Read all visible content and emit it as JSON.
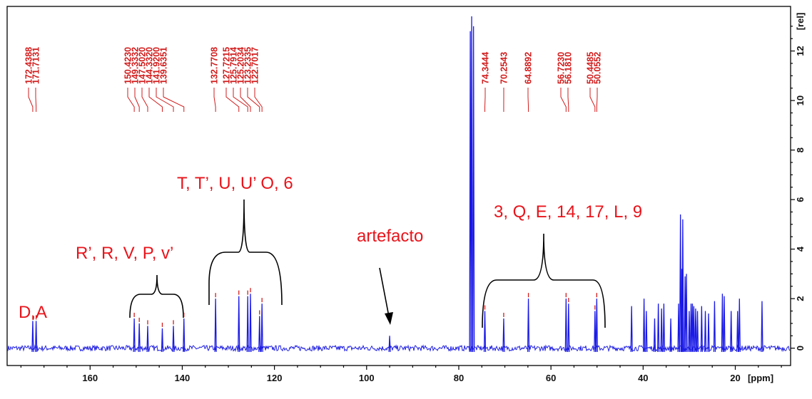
{
  "chart_data": {
    "type": "line",
    "title": "",
    "x_axis": {
      "ticks": [
        160,
        140,
        120,
        100,
        80,
        60,
        40,
        20
      ],
      "unit": "[ppm]",
      "range": [
        178,
        8
      ],
      "reversed": true
    },
    "y_axis": {
      "ticks": [
        0,
        2,
        4,
        6,
        8,
        10,
        12
      ],
      "unit": "[rel]",
      "range": [
        -0.7,
        13.8
      ]
    },
    "peak_labels": [
      "172.4388",
      "171.7131",
      "150.4230",
      "149.3332",
      "147.5020",
      "144.3320",
      "141.9200",
      "139.6351",
      "132.7708",
      "127.7215",
      "125.7914",
      "125.2034",
      "123.2335",
      "122.7017",
      "74.3444",
      "70.2543",
      "64.8892",
      "56.7230",
      "56.1810",
      "50.4485",
      "50.0552"
    ],
    "peaks": [
      {
        "x": 172.44,
        "h": 1.1
      },
      {
        "x": 171.71,
        "h": 1.1
      },
      {
        "x": 150.42,
        "h": 1.2
      },
      {
        "x": 149.33,
        "h": 1.0
      },
      {
        "x": 147.5,
        "h": 0.9
      },
      {
        "x": 144.33,
        "h": 0.8
      },
      {
        "x": 141.92,
        "h": 0.9
      },
      {
        "x": 139.64,
        "h": 1.2
      },
      {
        "x": 132.77,
        "h": 2.0
      },
      {
        "x": 127.72,
        "h": 2.1
      },
      {
        "x": 125.79,
        "h": 2.1
      },
      {
        "x": 125.2,
        "h": 2.2
      },
      {
        "x": 123.23,
        "h": 1.3
      },
      {
        "x": 122.7,
        "h": 1.8
      },
      {
        "x": 95.0,
        "h": 0.5
      },
      {
        "x": 77.5,
        "h": 12.8
      },
      {
        "x": 77.2,
        "h": 13.4
      },
      {
        "x": 76.8,
        "h": 13.0
      },
      {
        "x": 74.34,
        "h": 1.5
      },
      {
        "x": 70.25,
        "h": 1.2
      },
      {
        "x": 64.89,
        "h": 2.0
      },
      {
        "x": 56.72,
        "h": 2.0
      },
      {
        "x": 56.18,
        "h": 1.8
      },
      {
        "x": 50.45,
        "h": 1.5
      },
      {
        "x": 50.06,
        "h": 2.0
      },
      {
        "x": 42.5,
        "h": 1.7
      },
      {
        "x": 39.8,
        "h": 2.0
      },
      {
        "x": 39.3,
        "h": 1.5
      },
      {
        "x": 37.5,
        "h": 1.2
      },
      {
        "x": 36.7,
        "h": 1.8
      },
      {
        "x": 36.0,
        "h": 1.6
      },
      {
        "x": 35.5,
        "h": 1.8
      },
      {
        "x": 34.0,
        "h": 1.2
      },
      {
        "x": 32.3,
        "h": 1.8
      },
      {
        "x": 31.9,
        "h": 5.4
      },
      {
        "x": 31.6,
        "h": 3.2
      },
      {
        "x": 31.4,
        "h": 5.2
      },
      {
        "x": 30.9,
        "h": 2.9
      },
      {
        "x": 30.6,
        "h": 3.0
      },
      {
        "x": 30.0,
        "h": 1.5
      },
      {
        "x": 29.6,
        "h": 1.8
      },
      {
        "x": 29.3,
        "h": 1.8
      },
      {
        "x": 29.0,
        "h": 1.7
      },
      {
        "x": 28.6,
        "h": 1.6
      },
      {
        "x": 28.2,
        "h": 1.5
      },
      {
        "x": 27.3,
        "h": 1.7
      },
      {
        "x": 26.5,
        "h": 1.5
      },
      {
        "x": 25.8,
        "h": 1.4
      },
      {
        "x": 24.5,
        "h": 1.9
      },
      {
        "x": 22.8,
        "h": 2.2
      },
      {
        "x": 22.4,
        "h": 2.1
      },
      {
        "x": 20.9,
        "h": 1.5
      },
      {
        "x": 19.5,
        "h": 1.5
      },
      {
        "x": 19.1,
        "h": 2.0
      },
      {
        "x": 14.2,
        "h": 1.9
      }
    ]
  },
  "annotations": {
    "da": "D,A",
    "group1": "R’, R, V, P, v’",
    "group2": "T, T’, U, U’ O, 6",
    "artefacto": "artefacto",
    "group3": "3, Q, E, 14, 17, L, 9"
  }
}
